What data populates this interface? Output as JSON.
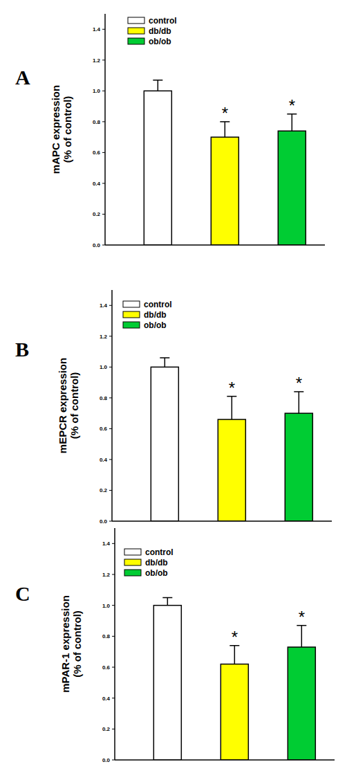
{
  "chart_data": [
    {
      "type": "bar",
      "panel": "A",
      "y_label": [
        "mAPC expression",
        "(% of control)"
      ],
      "categories": [
        null
      ],
      "tick_labels": "y",
      "legend": "upper left",
      "ylim": [
        0,
        1.5
      ],
      "yticks": [
        {
          "value": 0,
          "label": "0.0"
        },
        0.2,
        0.4,
        0.6,
        0.8,
        {
          "value": 1,
          "label": "1.0"
        },
        1.2,
        1.4
      ],
      "series": [
        {
          "name": "control",
          "color": "#ffffff",
          "values": [
            1.0
          ],
          "errors": [
            0.07
          ]
        },
        {
          "name": "db/db",
          "color": "#ffff00",
          "values": [
            0.7
          ],
          "errors": [
            0.1
          ],
          "annotation": "*"
        },
        {
          "name": "ob/ob",
          "color": "#00cc33",
          "values": [
            0.74
          ],
          "errors": [
            0.11
          ],
          "annotation": "*"
        }
      ]
    },
    {
      "type": "bar",
      "panel": "B",
      "y_label": [
        "mEPCR expression",
        "(% of control)"
      ],
      "categories": [
        null
      ],
      "tick_labels": "y",
      "legend": "upper left",
      "ylim": [
        0,
        1.5
      ],
      "yticks": [
        {
          "value": 0,
          "label": "0.0"
        },
        0.2,
        0.4,
        0.6,
        0.8,
        {
          "value": 1,
          "label": "1.0"
        },
        1.2,
        1.4
      ],
      "series": [
        {
          "name": "control",
          "color": "#ffffff",
          "values": [
            1.0
          ],
          "errors": [
            0.06
          ]
        },
        {
          "name": "db/db",
          "color": "#ffff00",
          "values": [
            0.66
          ],
          "errors": [
            0.15
          ],
          "annotation": "*"
        },
        {
          "name": "ob/ob",
          "color": "#00cc33",
          "values": [
            0.7
          ],
          "errors": [
            0.14
          ],
          "annotation": "*"
        }
      ]
    },
    {
      "type": "bar",
      "panel": "C",
      "y_label": [
        "mPAR-1 expression",
        "(% of control)"
      ],
      "categories": [
        null
      ],
      "tick_labels": "y",
      "legend": "upper left",
      "ylim": [
        0,
        1.5
      ],
      "yticks": [
        {
          "value": 0,
          "label": "0.0"
        },
        0.2,
        0.4,
        0.6,
        0.8,
        {
          "value": 1,
          "label": "1.0"
        },
        1.2,
        1.4
      ],
      "series": [
        {
          "name": "control",
          "color": "#ffffff",
          "values": [
            1.0
          ],
          "errors": [
            0.05
          ]
        },
        {
          "name": "db/db",
          "color": "#ffff00",
          "values": [
            0.62
          ],
          "errors": [
            0.12
          ],
          "annotation": "*"
        },
        {
          "name": "ob/ob",
          "color": "#00cc33",
          "values": [
            0.73
          ],
          "errors": [
            0.14
          ],
          "annotation": "*"
        }
      ]
    }
  ]
}
